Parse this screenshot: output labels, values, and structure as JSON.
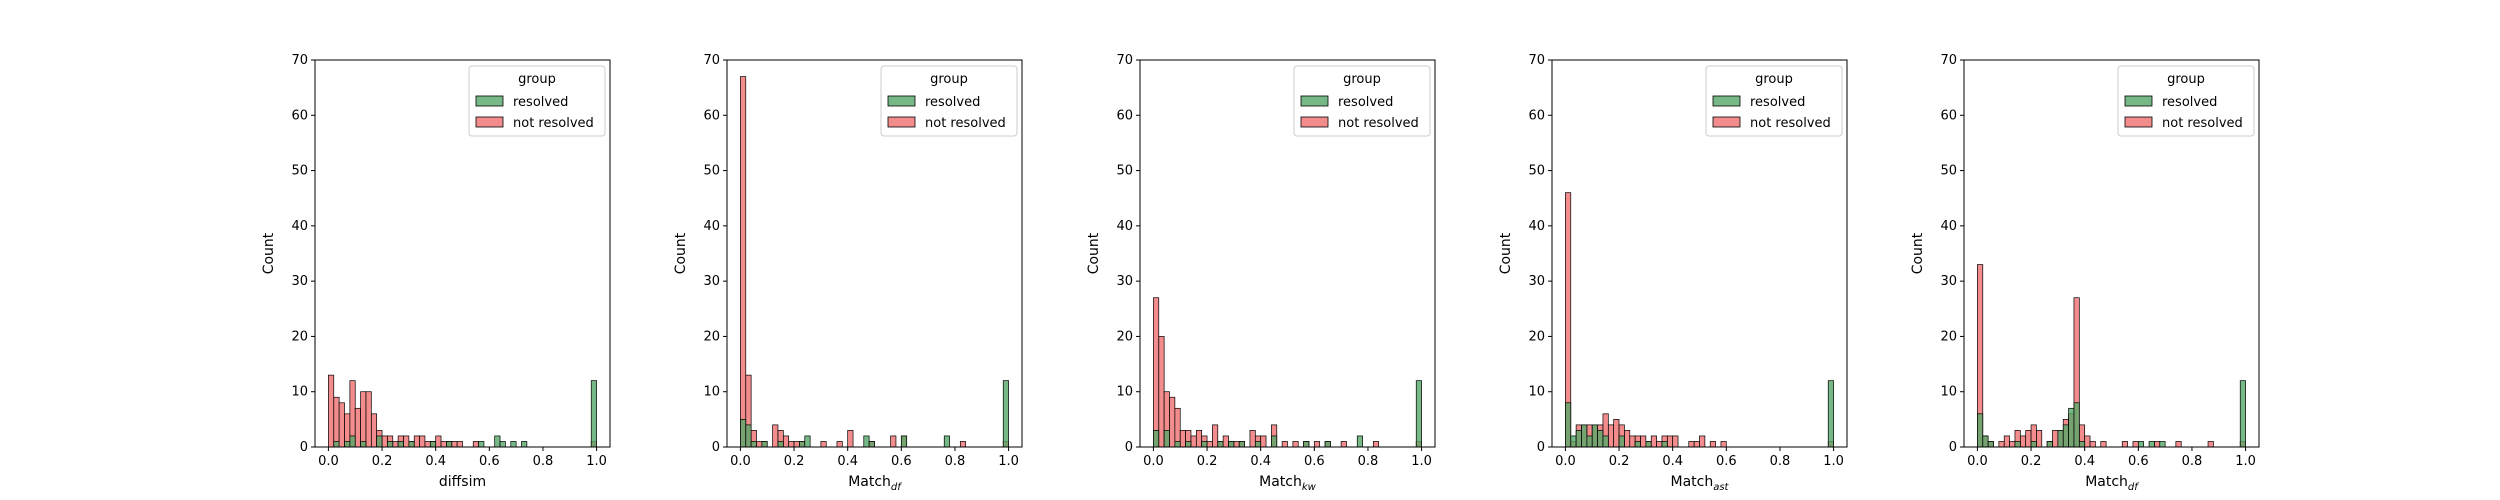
{
  "legend_title": "group",
  "ylabel": "Count",
  "colors": {
    "resolved": "#55a868",
    "not_resolved": "#f07070"
  },
  "chart_data": [
    {
      "type": "bar",
      "title": "",
      "xlabel": "diffsim",
      "xlabel_sub": "",
      "ylabel": "Count",
      "xlim": [
        -0.05,
        1.05
      ],
      "ylim": [
        0,
        70
      ],
      "x_ticks": [
        "0.0",
        "0.2",
        "0.4",
        "0.6",
        "0.8",
        "1.0"
      ],
      "y_ticks": [
        "0",
        "10",
        "20",
        "30",
        "40",
        "50",
        "60",
        "70"
      ],
      "legend": {
        "title": "group",
        "entries": [
          "resolved",
          "not resolved"
        ],
        "placement": "upper right"
      },
      "bin_width": 0.02,
      "series": [
        {
          "name": "not resolved",
          "bins": [
            [
              0.0,
              13
            ],
            [
              0.02,
              9
            ],
            [
              0.04,
              8
            ],
            [
              0.06,
              6
            ],
            [
              0.08,
              12
            ],
            [
              0.1,
              7
            ],
            [
              0.12,
              10
            ],
            [
              0.14,
              10
            ],
            [
              0.16,
              6
            ],
            [
              0.18,
              3
            ],
            [
              0.2,
              2
            ],
            [
              0.22,
              2
            ],
            [
              0.24,
              1
            ],
            [
              0.26,
              2
            ],
            [
              0.28,
              2
            ],
            [
              0.3,
              1
            ],
            [
              0.32,
              2
            ],
            [
              0.34,
              2
            ],
            [
              0.36,
              1
            ],
            [
              0.38,
              1
            ],
            [
              0.4,
              2
            ],
            [
              0.42,
              1
            ],
            [
              0.44,
              1
            ],
            [
              0.46,
              1
            ],
            [
              0.48,
              1
            ],
            [
              0.54,
              1
            ],
            [
              0.98,
              1
            ]
          ]
        },
        {
          "name": "resolved",
          "bins": [
            [
              0.02,
              1
            ],
            [
              0.06,
              1
            ],
            [
              0.08,
              2
            ],
            [
              0.12,
              1
            ],
            [
              0.18,
              2
            ],
            [
              0.22,
              1
            ],
            [
              0.26,
              1
            ],
            [
              0.3,
              1
            ],
            [
              0.38,
              1
            ],
            [
              0.44,
              1
            ],
            [
              0.56,
              1
            ],
            [
              0.62,
              2
            ],
            [
              0.64,
              1
            ],
            [
              0.68,
              1
            ],
            [
              0.72,
              1
            ],
            [
              0.98,
              12
            ]
          ]
        }
      ]
    },
    {
      "type": "bar",
      "title": "",
      "xlabel": "Match",
      "xlabel_sub": "df",
      "ylabel": "Count",
      "xlim": [
        -0.05,
        1.05
      ],
      "ylim": [
        0,
        70
      ],
      "x_ticks": [
        "0.0",
        "0.2",
        "0.4",
        "0.6",
        "0.8",
        "1.0"
      ],
      "y_ticks": [
        "0",
        "10",
        "20",
        "30",
        "40",
        "50",
        "60",
        "70"
      ],
      "legend": {
        "title": "group",
        "entries": [
          "resolved",
          "not resolved"
        ],
        "placement": "upper right"
      },
      "bin_width": 0.02,
      "series": [
        {
          "name": "not resolved",
          "bins": [
            [
              0.0,
              67
            ],
            [
              0.02,
              13
            ],
            [
              0.04,
              3
            ],
            [
              0.06,
              1
            ],
            [
              0.08,
              1
            ],
            [
              0.12,
              4
            ],
            [
              0.14,
              3
            ],
            [
              0.16,
              2
            ],
            [
              0.18,
              1
            ],
            [
              0.2,
              1
            ],
            [
              0.22,
              1
            ],
            [
              0.3,
              1
            ],
            [
              0.36,
              1
            ],
            [
              0.4,
              3
            ],
            [
              0.48,
              1
            ],
            [
              0.56,
              2
            ],
            [
              0.6,
              2
            ],
            [
              0.82,
              1
            ],
            [
              0.98,
              1
            ]
          ]
        },
        {
          "name": "resolved",
          "bins": [
            [
              0.0,
              5
            ],
            [
              0.02,
              4
            ],
            [
              0.04,
              1
            ],
            [
              0.08,
              1
            ],
            [
              0.14,
              1
            ],
            [
              0.22,
              1
            ],
            [
              0.24,
              2
            ],
            [
              0.46,
              2
            ],
            [
              0.48,
              1
            ],
            [
              0.6,
              2
            ],
            [
              0.76,
              2
            ],
            [
              0.98,
              12
            ]
          ]
        }
      ]
    },
    {
      "type": "bar",
      "title": "",
      "xlabel": "Match",
      "xlabel_sub": "kw",
      "ylabel": "Count",
      "xlim": [
        -0.05,
        1.05
      ],
      "ylim": [
        0,
        70
      ],
      "x_ticks": [
        "0.0",
        "0.2",
        "0.4",
        "0.6",
        "0.8",
        "1.0"
      ],
      "y_ticks": [
        "0",
        "10",
        "20",
        "30",
        "40",
        "50",
        "60",
        "70"
      ],
      "legend": {
        "title": "group",
        "entries": [
          "resolved",
          "not resolved"
        ],
        "placement": "upper right"
      },
      "bin_width": 0.02,
      "series": [
        {
          "name": "not resolved",
          "bins": [
            [
              0.0,
              27
            ],
            [
              0.02,
              20
            ],
            [
              0.04,
              10
            ],
            [
              0.06,
              9
            ],
            [
              0.08,
              7
            ],
            [
              0.1,
              3
            ],
            [
              0.12,
              3
            ],
            [
              0.14,
              2
            ],
            [
              0.16,
              3
            ],
            [
              0.18,
              2
            ],
            [
              0.2,
              1
            ],
            [
              0.22,
              4
            ],
            [
              0.24,
              1
            ],
            [
              0.26,
              2
            ],
            [
              0.28,
              1
            ],
            [
              0.3,
              1
            ],
            [
              0.32,
              1
            ],
            [
              0.36,
              3
            ],
            [
              0.38,
              2
            ],
            [
              0.4,
              2
            ],
            [
              0.44,
              4
            ],
            [
              0.48,
              1
            ],
            [
              0.52,
              1
            ],
            [
              0.56,
              1
            ],
            [
              0.6,
              1
            ],
            [
              0.64,
              1
            ],
            [
              0.7,
              1
            ],
            [
              0.82,
              1
            ],
            [
              0.98,
              1
            ]
          ]
        },
        {
          "name": "resolved",
          "bins": [
            [
              0.0,
              3
            ],
            [
              0.04,
              3
            ],
            [
              0.08,
              1
            ],
            [
              0.12,
              1
            ],
            [
              0.18,
              1
            ],
            [
              0.24,
              1
            ],
            [
              0.28,
              1
            ],
            [
              0.32,
              1
            ],
            [
              0.38,
              1
            ],
            [
              0.44,
              2
            ],
            [
              0.56,
              1
            ],
            [
              0.64,
              1
            ],
            [
              0.76,
              2
            ],
            [
              0.98,
              12
            ]
          ]
        }
      ]
    },
    {
      "type": "bar",
      "title": "",
      "xlabel": "Match",
      "xlabel_sub": "ast",
      "ylabel": "Count",
      "xlim": [
        -0.05,
        1.05
      ],
      "ylim": [
        0,
        70
      ],
      "x_ticks": [
        "0.0",
        "0.2",
        "0.4",
        "0.6",
        "0.8",
        "1.0"
      ],
      "y_ticks": [
        "0",
        "10",
        "20",
        "30",
        "40",
        "50",
        "60",
        "70"
      ],
      "legend": {
        "title": "group",
        "entries": [
          "resolved",
          "not resolved"
        ],
        "placement": "upper right"
      },
      "bin_width": 0.02,
      "series": [
        {
          "name": "not resolved",
          "bins": [
            [
              0.0,
              46
            ],
            [
              0.02,
              1
            ],
            [
              0.04,
              4
            ],
            [
              0.06,
              4
            ],
            [
              0.08,
              4
            ],
            [
              0.1,
              4
            ],
            [
              0.12,
              4
            ],
            [
              0.14,
              6
            ],
            [
              0.16,
              4
            ],
            [
              0.18,
              5
            ],
            [
              0.2,
              4
            ],
            [
              0.22,
              3
            ],
            [
              0.24,
              2
            ],
            [
              0.26,
              2
            ],
            [
              0.28,
              2
            ],
            [
              0.3,
              1
            ],
            [
              0.32,
              2
            ],
            [
              0.34,
              1
            ],
            [
              0.36,
              2
            ],
            [
              0.38,
              2
            ],
            [
              0.4,
              2
            ],
            [
              0.46,
              1
            ],
            [
              0.48,
              1
            ],
            [
              0.5,
              2
            ],
            [
              0.54,
              1
            ],
            [
              0.58,
              1
            ],
            [
              0.98,
              1
            ]
          ]
        },
        {
          "name": "resolved",
          "bins": [
            [
              0.0,
              8
            ],
            [
              0.02,
              2
            ],
            [
              0.04,
              3
            ],
            [
              0.06,
              4
            ],
            [
              0.08,
              2
            ],
            [
              0.1,
              4
            ],
            [
              0.12,
              3
            ],
            [
              0.14,
              2
            ],
            [
              0.2,
              2
            ],
            [
              0.26,
              1
            ],
            [
              0.3,
              1
            ],
            [
              0.36,
              1
            ],
            [
              0.98,
              12
            ]
          ]
        }
      ]
    },
    {
      "type": "bar",
      "title": "",
      "xlabel": "Match",
      "xlabel_sub": "df",
      "ylabel": "Count",
      "xlim": [
        -0.05,
        1.05
      ],
      "ylim": [
        0,
        70
      ],
      "x_ticks": [
        "0.0",
        "0.2",
        "0.4",
        "0.6",
        "0.8",
        "1.0"
      ],
      "y_ticks": [
        "0",
        "10",
        "20",
        "30",
        "40",
        "50",
        "60",
        "70"
      ],
      "legend": {
        "title": "group",
        "entries": [
          "resolved",
          "not resolved"
        ],
        "placement": "upper right"
      },
      "bin_width": 0.02,
      "series": [
        {
          "name": "not resolved",
          "bins": [
            [
              0.0,
              33
            ],
            [
              0.02,
              2
            ],
            [
              0.04,
              1
            ],
            [
              0.08,
              1
            ],
            [
              0.1,
              2
            ],
            [
              0.12,
              1
            ],
            [
              0.14,
              3
            ],
            [
              0.16,
              2
            ],
            [
              0.18,
              3
            ],
            [
              0.2,
              4
            ],
            [
              0.22,
              3
            ],
            [
              0.26,
              1
            ],
            [
              0.28,
              3
            ],
            [
              0.3,
              3
            ],
            [
              0.32,
              5
            ],
            [
              0.34,
              6
            ],
            [
              0.36,
              27
            ],
            [
              0.38,
              4
            ],
            [
              0.4,
              2
            ],
            [
              0.42,
              1
            ],
            [
              0.46,
              1
            ],
            [
              0.54,
              1
            ],
            [
              0.58,
              1
            ],
            [
              0.66,
              1
            ],
            [
              0.74,
              1
            ],
            [
              0.86,
              1
            ],
            [
              0.98,
              1
            ]
          ]
        },
        {
          "name": "resolved",
          "bins": [
            [
              0.0,
              6
            ],
            [
              0.02,
              2
            ],
            [
              0.04,
              1
            ],
            [
              0.14,
              1
            ],
            [
              0.2,
              1
            ],
            [
              0.26,
              1
            ],
            [
              0.3,
              3
            ],
            [
              0.32,
              4
            ],
            [
              0.34,
              7
            ],
            [
              0.36,
              8
            ],
            [
              0.38,
              1
            ],
            [
              0.6,
              1
            ],
            [
              0.64,
              1
            ],
            [
              0.68,
              1
            ],
            [
              0.98,
              12
            ]
          ]
        }
      ]
    }
  ]
}
